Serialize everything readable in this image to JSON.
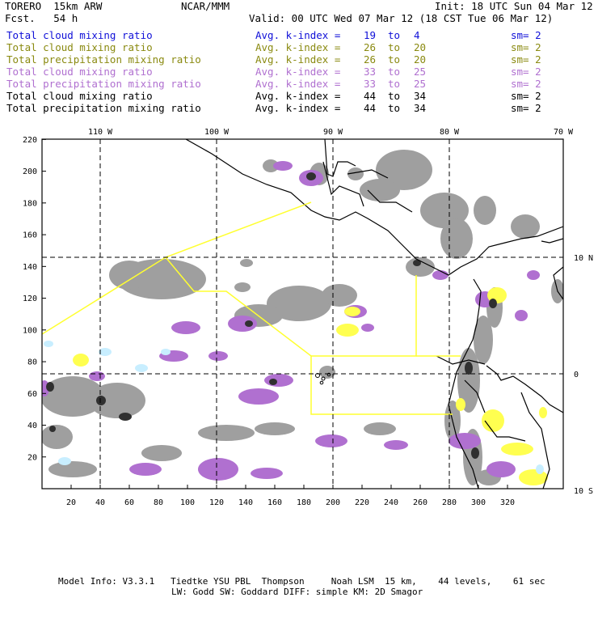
{
  "header": {
    "model": "TORERO  15km ARW",
    "org": "NCAR/MMM",
    "init": "Init: 18 UTC Sun 04 Mar 12",
    "fcst": "Fcst.   54 h",
    "valid": "Valid: 00 UTC Wed 07 Mar 12 (18 CST Tue 06 Mar 12)"
  },
  "legend": [
    {
      "field": "Total cloud mixing ratio",
      "kindex": "Avg. k-index =",
      "from": "19",
      "to_word": "to",
      "to": "4",
      "sm": "sm= 2",
      "color": "#1010d8"
    },
    {
      "field": "Total cloud mixing ratio",
      "kindex": "Avg. k-index =",
      "from": "26",
      "to_word": "to",
      "to": "20",
      "sm": "sm= 2",
      "color": "#8a8a10"
    },
    {
      "field": "Total precipitation mixing ratio",
      "kindex": "Avg. k-index =",
      "from": "26",
      "to_word": "to",
      "to": "20",
      "sm": "sm= 2",
      "color": "#8a8a10"
    },
    {
      "field": "Total cloud mixing ratio",
      "kindex": "Avg. k-index =",
      "from": "33",
      "to_word": "to",
      "to": "25",
      "sm": "sm= 2",
      "color": "#b070d0"
    },
    {
      "field": "Total precipitation mixing ratio",
      "kindex": "Avg. k-index =",
      "from": "33",
      "to_word": "to",
      "to": "25",
      "sm": "sm= 2",
      "color": "#b070d0"
    },
    {
      "field": "Total cloud mixing ratio",
      "kindex": "Avg. k-index =",
      "from": "44",
      "to_word": "to",
      "to": "34",
      "sm": "sm= 2",
      "color": "#000000"
    },
    {
      "field": "Total precipitation mixing ratio",
      "kindex": "Avg. k-index =",
      "from": "44",
      "to_word": "to",
      "to": "34",
      "sm": "sm= 2",
      "color": "#000000"
    }
  ],
  "map": {
    "top_labels": [
      "110 W",
      "100 W",
      "90 W",
      "80 W",
      "70 W"
    ],
    "right_labels": [
      "10 N",
      "0",
      "10 S"
    ],
    "left_ticks": [
      "220",
      "200",
      "180",
      "160",
      "140",
      "120",
      "100",
      "80",
      "60",
      "40",
      "20"
    ],
    "bottom_ticks": [
      "20",
      "40",
      "60",
      "80",
      "100",
      "120",
      "140",
      "160",
      "180",
      "200",
      "220",
      "240",
      "260",
      "280",
      "300",
      "320"
    ],
    "colors": {
      "cloud_gray": "#9a9a9a",
      "dark_core": "#303030",
      "violet": "#b070d0",
      "yellow": "#ffff50",
      "light_blue": "#c8eeff",
      "yellow_line": "#ffff30"
    }
  },
  "footer": {
    "line1": "Model Info: V3.3.1   Tiedtke YSU PBL  Thompson     Noah LSM  15 km,    44 levels,    61 sec",
    "line2": "LW: Godd SW: Goddard DIFF: simple KM: 2D Smagor"
  }
}
